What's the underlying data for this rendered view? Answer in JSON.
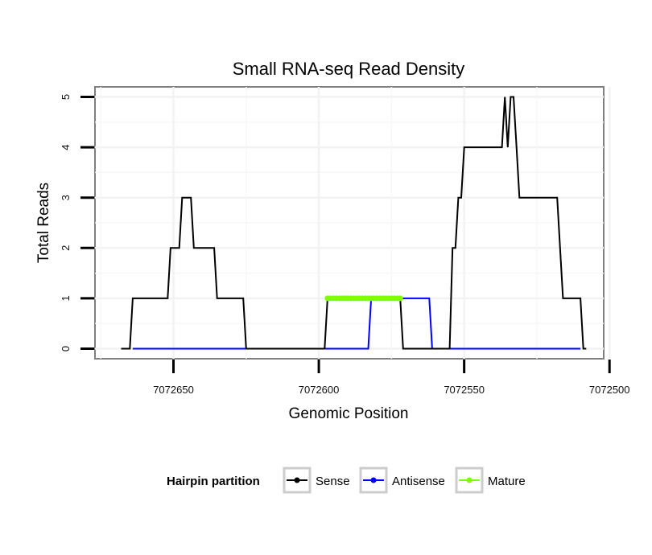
{
  "chart_data": {
    "type": "line",
    "title": "Small RNA-seq Read Density",
    "xlabel": "Genomic Position",
    "ylabel": "Total Reads",
    "x_reversed": true,
    "xlim": [
      7072677,
      7072502
    ],
    "ylim": [
      -0.2,
      5.2
    ],
    "x_ticks": [
      7072650,
      7072600,
      7072550,
      7072500
    ],
    "x_tick_labels": [
      "7072650",
      "7072600",
      "7072550",
      "7072500"
    ],
    "y_ticks": [
      0,
      1,
      2,
      3,
      4,
      5
    ],
    "y_tick_labels": [
      "0",
      "1",
      "2",
      "3",
      "4",
      "5"
    ],
    "grid": true,
    "legend": {
      "title": "Hairpin partition",
      "position": "bottom",
      "entries": [
        "Sense",
        "Antisense",
        "Mature"
      ]
    },
    "series": [
      {
        "name": "Sense",
        "color": "#000000",
        "x": [
          7072668,
          7072665,
          7072664,
          7072653,
          7072652,
          7072651,
          7072648,
          7072647,
          7072645,
          7072644,
          7072643,
          7072642,
          7072636,
          7072635,
          7072626,
          7072625,
          7072598,
          7072597,
          7072572,
          7072571,
          7072556,
          7072555,
          7072554,
          7072553,
          7072552,
          7072551,
          7072550,
          7072537,
          7072536,
          7072535,
          7072534,
          7072533,
          7072532,
          7072531,
          7072530,
          7072518,
          7072517,
          7072516,
          7072510,
          7072509,
          7072508
        ],
        "values": [
          0,
          0,
          1,
          1,
          1,
          2,
          2,
          3,
          3,
          3,
          2,
          2,
          2,
          1,
          1,
          0,
          0,
          1,
          1,
          0,
          0,
          0,
          2,
          2,
          3,
          3,
          4,
          4,
          5,
          4,
          5,
          5,
          4,
          3,
          3,
          3,
          2,
          1,
          1,
          0,
          0
        ]
      },
      {
        "name": "Antisense",
        "color": "#0000ff",
        "x": [
          7072664,
          7072583,
          7072582,
          7072562,
          7072561,
          7072555,
          7072510
        ],
        "values": [
          0,
          0,
          1,
          1,
          0,
          0,
          0
        ]
      },
      {
        "name": "Mature",
        "color": "#7fff00",
        "x": [
          7072597,
          7072596,
          7072595,
          7072594,
          7072593,
          7072592,
          7072591,
          7072590,
          7072589,
          7072588,
          7072587,
          7072586,
          7072585,
          7072584,
          7072583,
          7072582,
          7072581,
          7072580,
          7072579,
          7072578,
          7072577,
          7072576,
          7072575,
          7072574,
          7072573,
          7072572
        ],
        "values": [
          1,
          1,
          1,
          1,
          1,
          1,
          1,
          1,
          1,
          1,
          1,
          1,
          1,
          1,
          1,
          1,
          1,
          1,
          1,
          1,
          1,
          1,
          1,
          1,
          1,
          1
        ]
      }
    ]
  }
}
